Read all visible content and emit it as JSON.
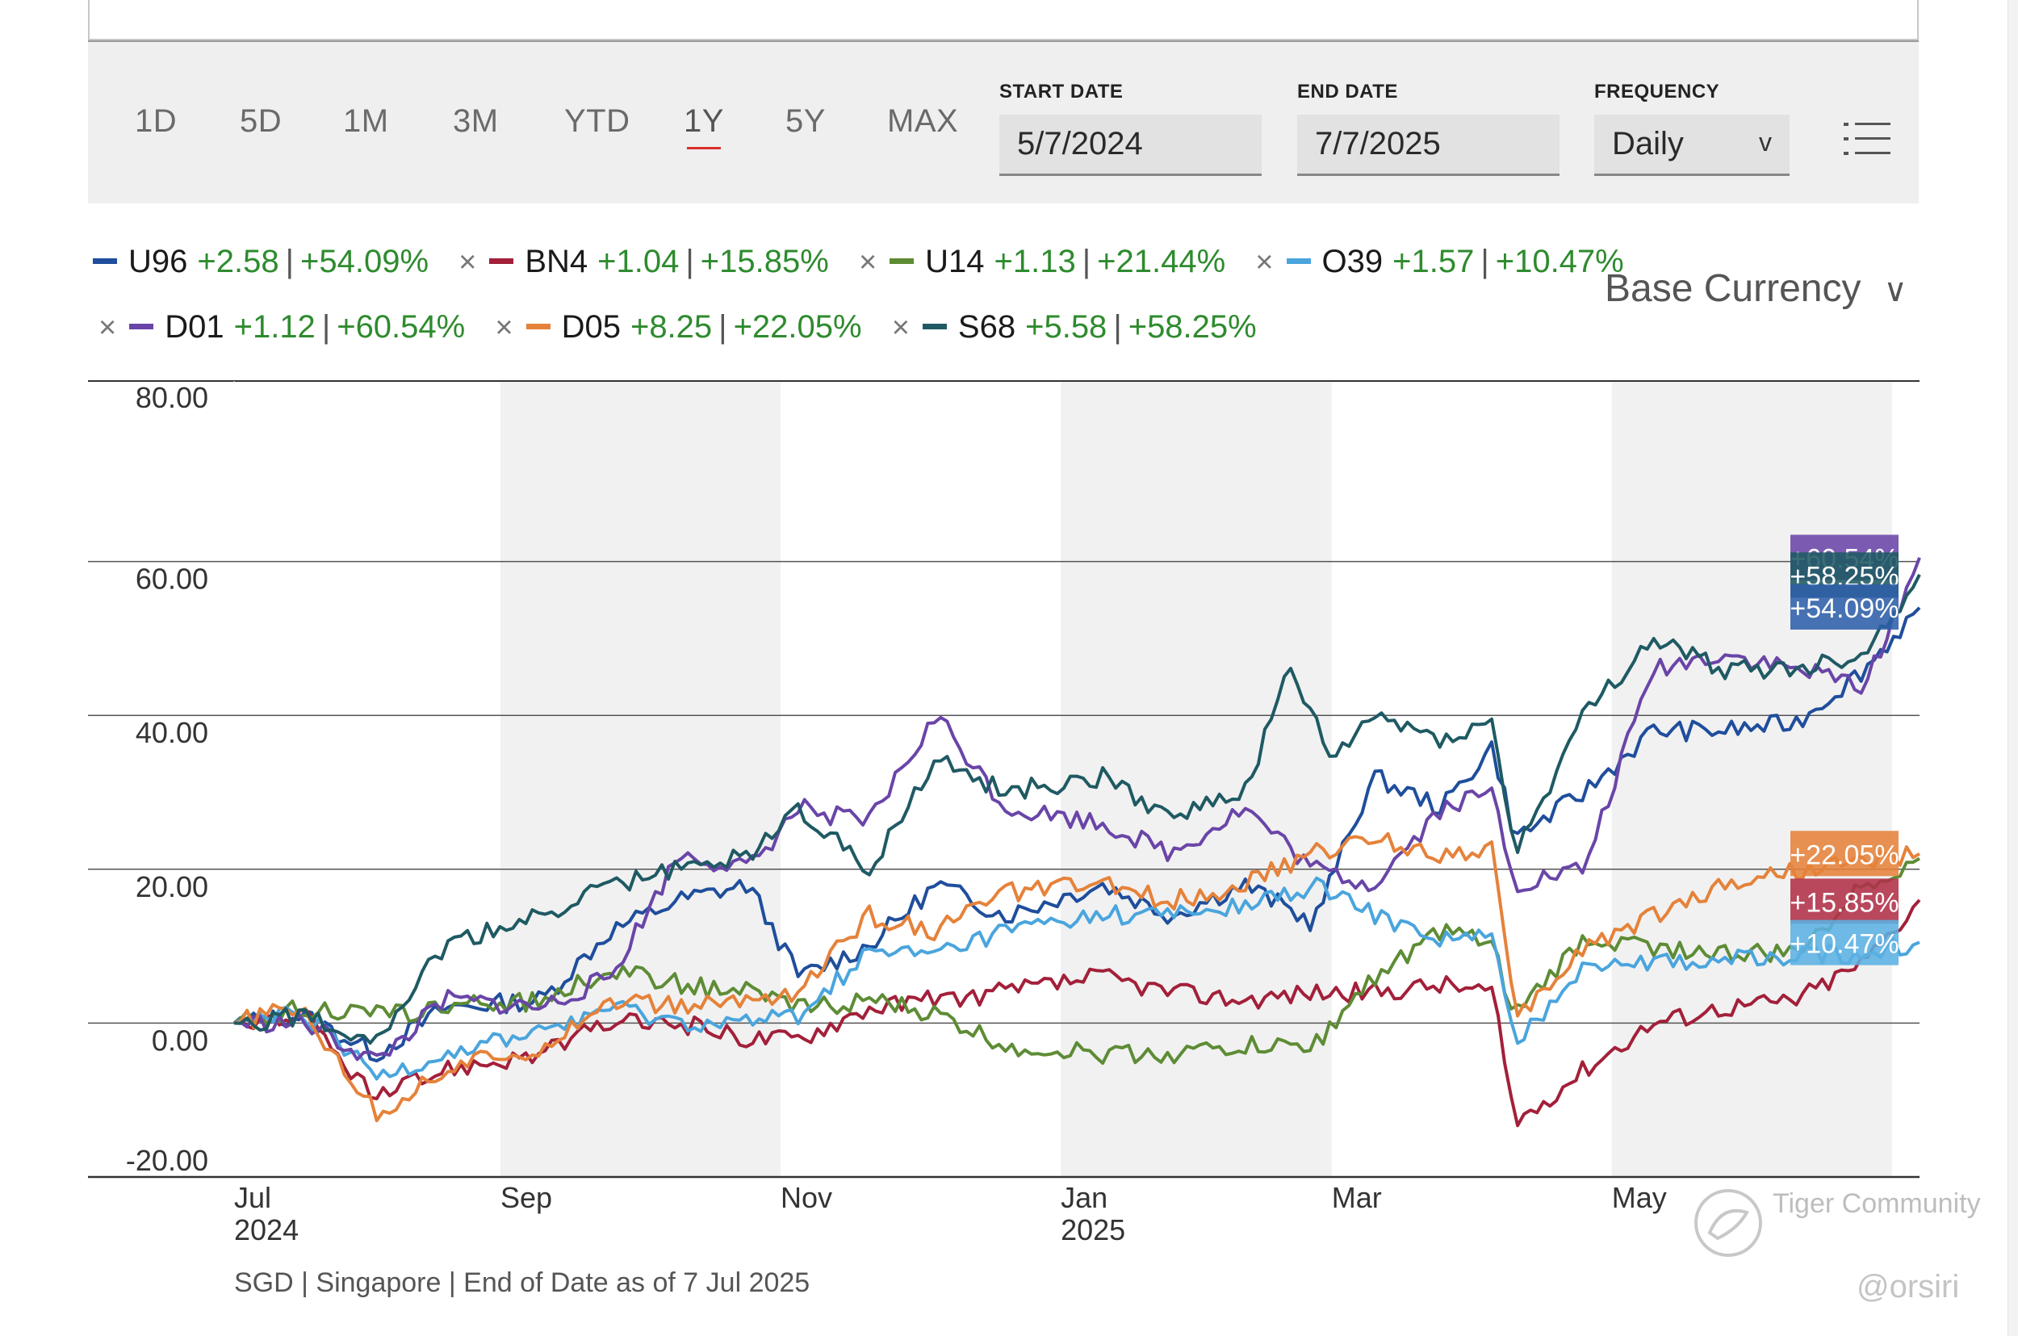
{
  "toolbar": {
    "ranges": [
      "1D",
      "5D",
      "1M",
      "3M",
      "YTD",
      "1Y",
      "5Y",
      "MAX"
    ],
    "active_range": "1Y",
    "start_date_label": "START DATE",
    "start_date_value": "5/7/2024",
    "end_date_label": "END DATE",
    "end_date_value": "7/7/2025",
    "frequency_label": "FREQUENCY",
    "frequency_value": "Daily",
    "frequency_arrow": "v",
    "menu_icon": "list-icon"
  },
  "base_currency": {
    "label": "Base Currency",
    "chevron": "∨"
  },
  "legend": {
    "remove_glyph": "×",
    "items": [
      {
        "symbol": "U96",
        "change": "+2.58",
        "sep": "|",
        "pct": "+54.09%",
        "color": "#1f4e9c"
      },
      {
        "symbol": "BN4",
        "change": "+1.04",
        "sep": "|",
        "pct": "+15.85%",
        "color": "#a3203a"
      },
      {
        "symbol": "U14",
        "change": "+1.13",
        "sep": "|",
        "pct": "+21.44%",
        "color": "#5d8c35"
      },
      {
        "symbol": "O39",
        "change": "+1.57",
        "sep": "|",
        "pct": "+10.47%",
        "color": "#4aa5dd"
      },
      {
        "symbol": "D01",
        "change": "+1.12",
        "sep": "|",
        "pct": "+60.54%",
        "color": "#6a45a8"
      },
      {
        "symbol": "D05",
        "change": "+8.25",
        "sep": "|",
        "pct": "+22.05%",
        "color": "#e5823a"
      },
      {
        "symbol": "S68",
        "change": "+5.58",
        "sep": "|",
        "pct": "+58.25%",
        "color": "#1f5a63"
      }
    ]
  },
  "chart_data": {
    "type": "line",
    "y_unit": "% change",
    "ylim": [
      -20,
      80
    ],
    "y_ticks": [
      "80.00",
      "60.00",
      "40.00",
      "20.00",
      "0.00",
      "-20.00"
    ],
    "y_tick_values": [
      80,
      60,
      40,
      20,
      0,
      -20
    ],
    "x_range": [
      "2024-07-05",
      "2025-07-07"
    ],
    "x_ticks": [
      {
        "date": "2024-07-05",
        "month": "Jul",
        "year": "2024"
      },
      {
        "date": "2024-09-01",
        "month": "Sep",
        "year": ""
      },
      {
        "date": "2024-11-01",
        "month": "Nov",
        "year": ""
      },
      {
        "date": "2025-01-01",
        "month": "Jan",
        "year": "2025"
      },
      {
        "date": "2025-03-01",
        "month": "Mar",
        "year": ""
      },
      {
        "date": "2025-05-01",
        "month": "May",
        "year": ""
      }
    ],
    "shaded_bands": [
      [
        "2024-09-01",
        "2024-11-01"
      ],
      [
        "2025-01-01",
        "2025-03-01"
      ],
      [
        "2025-05-01",
        "2025-07-01"
      ]
    ],
    "grid": true,
    "series": [
      {
        "name": "U96",
        "color": "#1f4e9c",
        "end_label": "+54.09%",
        "points": [
          [
            "2024-07-05",
            0
          ],
          [
            "2024-07-20",
            1
          ],
          [
            "2024-08-05",
            -4
          ],
          [
            "2024-08-20",
            2
          ],
          [
            "2024-09-10",
            3
          ],
          [
            "2024-09-25",
            12
          ],
          [
            "2024-10-10",
            16
          ],
          [
            "2024-10-25",
            18
          ],
          [
            "2024-11-05",
            6
          ],
          [
            "2024-11-20",
            10
          ],
          [
            "2024-12-05",
            18
          ],
          [
            "2024-12-20",
            14
          ],
          [
            "2025-01-10",
            18
          ],
          [
            "2025-01-25",
            14
          ],
          [
            "2025-02-10",
            18
          ],
          [
            "2025-02-25",
            13
          ],
          [
            "2025-03-10",
            32
          ],
          [
            "2025-03-25",
            28
          ],
          [
            "2025-04-05",
            36
          ],
          [
            "2025-04-10",
            24
          ],
          [
            "2025-04-25",
            30
          ],
          [
            "2025-05-10",
            38
          ],
          [
            "2025-05-25",
            38
          ],
          [
            "2025-06-10",
            39
          ],
          [
            "2025-06-25",
            46
          ],
          [
            "2025-07-07",
            54
          ]
        ]
      },
      {
        "name": "BN4",
        "color": "#a3203a",
        "end_label": "+15.85%",
        "points": [
          [
            "2024-07-05",
            0
          ],
          [
            "2024-07-20",
            1
          ],
          [
            "2024-08-05",
            -10
          ],
          [
            "2024-08-20",
            -6
          ],
          [
            "2024-09-10",
            -4
          ],
          [
            "2024-09-25",
            0
          ],
          [
            "2024-10-10",
            0
          ],
          [
            "2024-10-25",
            -2
          ],
          [
            "2024-11-05",
            -2
          ],
          [
            "2024-11-20",
            2
          ],
          [
            "2024-12-05",
            3
          ],
          [
            "2024-12-20",
            4
          ],
          [
            "2025-01-10",
            6
          ],
          [
            "2025-01-25",
            4
          ],
          [
            "2025-02-10",
            3
          ],
          [
            "2025-02-25",
            4
          ],
          [
            "2025-03-10",
            4
          ],
          [
            "2025-03-25",
            5
          ],
          [
            "2025-04-05",
            4
          ],
          [
            "2025-04-10",
            -13
          ],
          [
            "2025-04-25",
            -6
          ],
          [
            "2025-05-10",
            0
          ],
          [
            "2025-05-25",
            2
          ],
          [
            "2025-06-10",
            3
          ],
          [
            "2025-06-25",
            8
          ],
          [
            "2025-07-07",
            16
          ]
        ]
      },
      {
        "name": "U14",
        "color": "#5d8c35",
        "end_label": "",
        "points": [
          [
            "2024-07-05",
            0
          ],
          [
            "2024-07-20",
            2
          ],
          [
            "2024-08-05",
            1
          ],
          [
            "2024-08-20",
            2
          ],
          [
            "2024-09-10",
            3
          ],
          [
            "2024-09-25",
            7
          ],
          [
            "2024-10-10",
            5
          ],
          [
            "2024-10-25",
            4
          ],
          [
            "2024-11-05",
            2
          ],
          [
            "2024-11-20",
            3
          ],
          [
            "2024-12-05",
            1
          ],
          [
            "2024-12-20",
            -3
          ],
          [
            "2025-01-10",
            -4
          ],
          [
            "2025-01-25",
            -4
          ],
          [
            "2025-02-10",
            -3
          ],
          [
            "2025-02-25",
            -3
          ],
          [
            "2025-03-10",
            6
          ],
          [
            "2025-03-25",
            12
          ],
          [
            "2025-04-05",
            10
          ],
          [
            "2025-04-10",
            1
          ],
          [
            "2025-04-25",
            11
          ],
          [
            "2025-05-10",
            10
          ],
          [
            "2025-05-25",
            9
          ],
          [
            "2025-06-10",
            9
          ],
          [
            "2025-06-25",
            18
          ],
          [
            "2025-07-07",
            21.4
          ]
        ]
      },
      {
        "name": "O39",
        "color": "#4aa5dd",
        "end_label": "+10.47%",
        "points": [
          [
            "2024-07-05",
            0
          ],
          [
            "2024-07-20",
            1
          ],
          [
            "2024-08-05",
            -7
          ],
          [
            "2024-08-20",
            -4
          ],
          [
            "2024-09-10",
            -1
          ],
          [
            "2024-09-25",
            2
          ],
          [
            "2024-10-10",
            0
          ],
          [
            "2024-10-25",
            0
          ],
          [
            "2024-11-05",
            1
          ],
          [
            "2024-11-20",
            9
          ],
          [
            "2024-12-05",
            9
          ],
          [
            "2024-12-20",
            12
          ],
          [
            "2025-01-10",
            14
          ],
          [
            "2025-01-25",
            14
          ],
          [
            "2025-02-10",
            15
          ],
          [
            "2025-02-25",
            18
          ],
          [
            "2025-03-10",
            14
          ],
          [
            "2025-03-25",
            11
          ],
          [
            "2025-04-05",
            11
          ],
          [
            "2025-04-10",
            -3
          ],
          [
            "2025-04-25",
            8
          ],
          [
            "2025-05-10",
            8
          ],
          [
            "2025-05-25",
            8
          ],
          [
            "2025-06-10",
            9
          ],
          [
            "2025-06-25",
            9
          ],
          [
            "2025-07-07",
            10.5
          ]
        ]
      },
      {
        "name": "D01",
        "color": "#6a45a8",
        "end_label": "+60.54%",
        "points": [
          [
            "2024-07-05",
            0
          ],
          [
            "2024-07-20",
            0
          ],
          [
            "2024-08-05",
            -5
          ],
          [
            "2024-08-20",
            3
          ],
          [
            "2024-09-10",
            2
          ],
          [
            "2024-09-25",
            6
          ],
          [
            "2024-10-10",
            22
          ],
          [
            "2024-10-25",
            20
          ],
          [
            "2024-11-05",
            28
          ],
          [
            "2024-11-20",
            26
          ],
          [
            "2024-12-05",
            40
          ],
          [
            "2024-12-20",
            28
          ],
          [
            "2025-01-10",
            26
          ],
          [
            "2025-01-25",
            22
          ],
          [
            "2025-02-10",
            28
          ],
          [
            "2025-02-25",
            20
          ],
          [
            "2025-03-10",
            18
          ],
          [
            "2025-03-25",
            28
          ],
          [
            "2025-04-05",
            30
          ],
          [
            "2025-04-10",
            18
          ],
          [
            "2025-04-25",
            20
          ],
          [
            "2025-05-10",
            46
          ],
          [
            "2025-05-25",
            48
          ],
          [
            "2025-06-10",
            46
          ],
          [
            "2025-06-25",
            44
          ],
          [
            "2025-07-07",
            60.5
          ]
        ]
      },
      {
        "name": "D05",
        "color": "#e5823a",
        "end_label": "+22.05%",
        "points": [
          [
            "2024-07-05",
            0
          ],
          [
            "2024-07-20",
            2
          ],
          [
            "2024-08-05",
            -12
          ],
          [
            "2024-08-20",
            -6
          ],
          [
            "2024-09-10",
            -3
          ],
          [
            "2024-09-25",
            3
          ],
          [
            "2024-10-10",
            2
          ],
          [
            "2024-10-25",
            3
          ],
          [
            "2024-11-05",
            4
          ],
          [
            "2024-11-20",
            14
          ],
          [
            "2024-12-05",
            12
          ],
          [
            "2024-12-20",
            17
          ],
          [
            "2025-01-10",
            18
          ],
          [
            "2025-01-25",
            16
          ],
          [
            "2025-02-10",
            18
          ],
          [
            "2025-02-25",
            22
          ],
          [
            "2025-03-10",
            24
          ],
          [
            "2025-03-25",
            22
          ],
          [
            "2025-04-05",
            23
          ],
          [
            "2025-04-10",
            0
          ],
          [
            "2025-04-25",
            10
          ],
          [
            "2025-05-10",
            14
          ],
          [
            "2025-05-25",
            18
          ],
          [
            "2025-06-10",
            20
          ],
          [
            "2025-06-25",
            21
          ],
          [
            "2025-07-07",
            22
          ]
        ]
      },
      {
        "name": "S68",
        "color": "#1f5a63",
        "end_label": "+58.25%",
        "points": [
          [
            "2024-07-05",
            0
          ],
          [
            "2024-07-20",
            1
          ],
          [
            "2024-08-05",
            -2
          ],
          [
            "2024-08-20",
            10
          ],
          [
            "2024-09-10",
            14
          ],
          [
            "2024-09-25",
            18
          ],
          [
            "2024-10-10",
            20
          ],
          [
            "2024-10-25",
            22
          ],
          [
            "2024-11-05",
            28
          ],
          [
            "2024-11-20",
            20
          ],
          [
            "2024-12-05",
            34
          ],
          [
            "2024-12-20",
            30
          ],
          [
            "2025-01-10",
            32
          ],
          [
            "2025-01-25",
            27
          ],
          [
            "2025-02-10",
            30
          ],
          [
            "2025-02-20",
            46
          ],
          [
            "2025-03-01",
            34
          ],
          [
            "2025-03-10",
            40
          ],
          [
            "2025-03-25",
            37
          ],
          [
            "2025-04-05",
            39
          ],
          [
            "2025-04-10",
            22
          ],
          [
            "2025-04-25",
            40
          ],
          [
            "2025-05-10",
            50
          ],
          [
            "2025-05-25",
            46
          ],
          [
            "2025-06-10",
            46
          ],
          [
            "2025-06-25",
            48
          ],
          [
            "2025-07-07",
            58.3
          ]
        ]
      }
    ]
  },
  "end_labels_stack": [
    {
      "text": "+60.54%",
      "color": "#6a45a8",
      "value": 60.54
    },
    {
      "text": "+58.25%",
      "color": "#1f5a63",
      "value": 58.25
    },
    {
      "text": "+54.09%",
      "color": "#2d5ea8",
      "value": 54.09
    },
    {
      "text": "+22.05%",
      "color": "#e5823a",
      "value": 22.05
    },
    {
      "text": "+15.85%",
      "color": "#b03048",
      "value": 15.85
    },
    {
      "text": "+10.47%",
      "color": "#5bb0e3",
      "value": 10.47
    }
  ],
  "footer": "SGD | Singapore | End of Date as of 7 Jul 2025",
  "watermark": "Tiger Community",
  "watermark_handle": "@orsiri"
}
